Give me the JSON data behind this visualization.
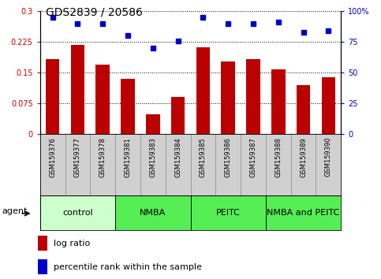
{
  "title": "GDS2839 / 20586",
  "samples": [
    "GSM159376",
    "GSM159377",
    "GSM159378",
    "GSM159381",
    "GSM159383",
    "GSM159384",
    "GSM159385",
    "GSM159386",
    "GSM159387",
    "GSM159388",
    "GSM159389",
    "GSM159390"
  ],
  "log_ratio": [
    0.182,
    0.218,
    0.17,
    0.135,
    0.048,
    0.09,
    0.212,
    0.178,
    0.182,
    0.157,
    0.12,
    0.138
  ],
  "percentile_rank": [
    95,
    90,
    90,
    80,
    70,
    76,
    95,
    90,
    90,
    91,
    83,
    84
  ],
  "bar_color": "#bb0000",
  "dot_color": "#0000cc",
  "ylim_left": [
    0,
    0.3
  ],
  "ylim_right": [
    0,
    100
  ],
  "yticks_left": [
    0,
    0.075,
    0.15,
    0.225,
    0.3
  ],
  "ytick_labels_left": [
    "0",
    "0.075",
    "0.15",
    "0.225",
    "0.3"
  ],
  "ytick_labels_right": [
    "0",
    "25",
    "50",
    "75",
    "100%"
  ],
  "groups": [
    {
      "label": "control",
      "start": 0,
      "end": 3,
      "color": "#ccffcc"
    },
    {
      "label": "NMBA",
      "start": 3,
      "end": 6,
      "color": "#55ee55"
    },
    {
      "label": "PEITC",
      "start": 6,
      "end": 9,
      "color": "#55ee55"
    },
    {
      "label": "NMBA and PEITC",
      "start": 9,
      "end": 12,
      "color": "#55ee55"
    }
  ],
  "agent_label": "agent",
  "legend_items": [
    {
      "color": "#bb0000",
      "label": "log ratio"
    },
    {
      "color": "#0000cc",
      "label": "percentile rank within the sample"
    }
  ],
  "sample_bg_color": "#d0d0d0",
  "plot_bg": "#ffffff",
  "title_fontsize": 10,
  "tick_fontsize": 7,
  "legend_fontsize": 8,
  "group_fontsize": 8,
  "agent_fontsize": 8
}
